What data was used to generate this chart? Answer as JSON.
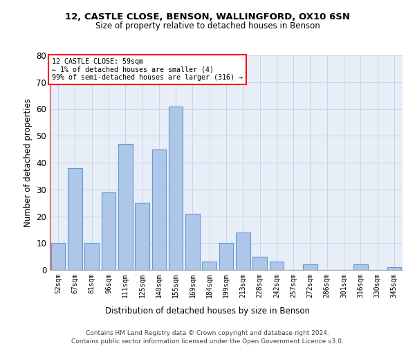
{
  "title1": "12, CASTLE CLOSE, BENSON, WALLINGFORD, OX10 6SN",
  "title2": "Size of property relative to detached houses in Benson",
  "xlabel": "Distribution of detached houses by size in Benson",
  "ylabel": "Number of detached properties",
  "categories": [
    "52sqm",
    "67sqm",
    "81sqm",
    "96sqm",
    "111sqm",
    "125sqm",
    "140sqm",
    "155sqm",
    "169sqm",
    "184sqm",
    "199sqm",
    "213sqm",
    "228sqm",
    "242sqm",
    "257sqm",
    "272sqm",
    "286sqm",
    "301sqm",
    "316sqm",
    "330sqm",
    "345sqm"
  ],
  "values": [
    10,
    38,
    10,
    29,
    47,
    25,
    45,
    61,
    21,
    3,
    10,
    14,
    5,
    3,
    0,
    2,
    0,
    0,
    2,
    0,
    1
  ],
  "bar_color": "#aec6e8",
  "bar_edge_color": "#5b9bd5",
  "annotation_box_text": [
    "12 CASTLE CLOSE: 59sqm",
    "← 1% of detached houses are smaller (4)",
    "99% of semi-detached houses are larger (316) →"
  ],
  "annotation_box_color": "white",
  "annotation_box_edge_color": "red",
  "vline_color": "red",
  "ylim": [
    0,
    80
  ],
  "yticks": [
    0,
    10,
    20,
    30,
    40,
    50,
    60,
    70,
    80
  ],
  "grid_color": "#c8d4e8",
  "background_color": "#e8eef8",
  "footnote1": "Contains HM Land Registry data © Crown copyright and database right 2024.",
  "footnote2": "Contains public sector information licensed under the Open Government Licence v3.0."
}
